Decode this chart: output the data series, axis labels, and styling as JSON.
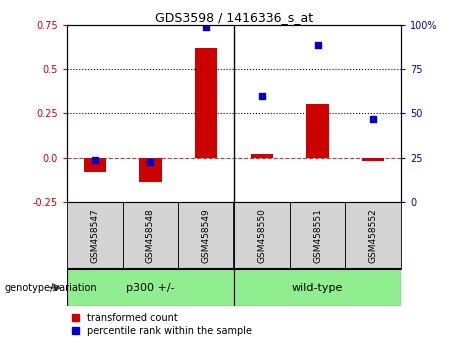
{
  "title": "GDS3598 / 1416336_s_at",
  "samples": [
    "GSM458547",
    "GSM458548",
    "GSM458549",
    "GSM458550",
    "GSM458551",
    "GSM458552"
  ],
  "red_values": [
    -0.08,
    -0.14,
    0.62,
    0.02,
    0.3,
    -0.02
  ],
  "blue_values": [
    -0.015,
    -0.025,
    0.735,
    0.345,
    0.635,
    0.22
  ],
  "ylim": [
    -0.25,
    0.75
  ],
  "yticks_left": [
    -0.25,
    0.0,
    0.25,
    0.5,
    0.75
  ],
  "yticks_right": [
    0,
    25,
    50,
    75,
    100
  ],
  "hlines_dotted": [
    0.25,
    0.5
  ],
  "hline_dashed": 0.0,
  "group_labels": [
    "p300 +/-",
    "wild-type"
  ],
  "group_color": "#90EE90",
  "group_divider": 2.5,
  "red_color": "#cc0000",
  "blue_color": "#0000cc",
  "bar_width": 0.4,
  "marker_size": 25,
  "sample_bg_color": "#d3d3d3",
  "legend_red": "transformed count",
  "legend_blue": "percentile rank within the sample",
  "genotype_label": "genotype/variation"
}
